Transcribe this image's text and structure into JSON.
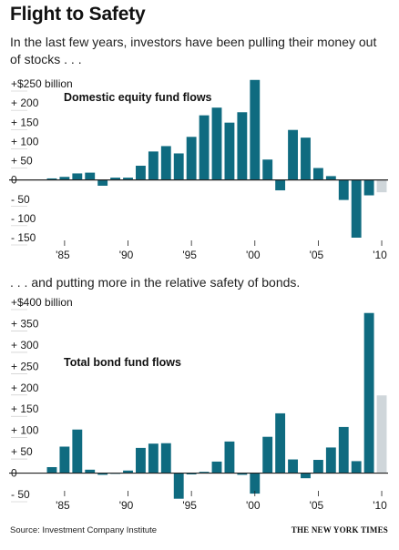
{
  "title": "Flight to Safety",
  "subtitle": "In the last few years, investors have been pulling their money out of stocks . . .",
  "subtitle2": ". . . and putting more in the relative safety of bonds.",
  "source": "Source: Investment Company Institute",
  "credit": "THE NEW YORK TIMES",
  "colors": {
    "bar": "#0f6b80",
    "estimate": "#cfd6da",
    "axis": "#222222",
    "text": "#1a1a1a"
  },
  "chart_data": [
    {
      "type": "bar",
      "title": "Domestic equity fund flows",
      "ylim": [
        -160,
        260
      ],
      "ytick_values": [
        250,
        200,
        150,
        100,
        50,
        0,
        -50,
        -100,
        -150
      ],
      "ytick_labels": [
        "+$250 billion",
        "+ 200",
        "+ 150",
        "+ 100",
        "+ 50",
        "0",
        "- 50",
        "- 100",
        "- 150"
      ],
      "xtick_years": [
        1985,
        1990,
        1995,
        2000,
        2005,
        2010
      ],
      "xtick_labels": [
        "'85",
        "'90",
        "'95",
        "'00",
        "'05",
        "'10"
      ],
      "x": [
        1984,
        1985,
        1986,
        1987,
        1988,
        1989,
        1990,
        1991,
        1992,
        1993,
        1994,
        1995,
        1996,
        1997,
        1998,
        1999,
        2000,
        2001,
        2002,
        2003,
        2004,
        2005,
        2006,
        2007,
        2008,
        2009,
        2010
      ],
      "values": [
        4,
        8,
        17,
        19,
        -15,
        6,
        6,
        37,
        74,
        88,
        69,
        112,
        168,
        188,
        149,
        176,
        260,
        53,
        -27,
        130,
        110,
        31,
        10,
        -52,
        -150,
        -40,
        -32
      ],
      "estimated": [
        false,
        false,
        false,
        false,
        false,
        false,
        false,
        false,
        false,
        false,
        false,
        false,
        false,
        false,
        false,
        false,
        false,
        false,
        false,
        false,
        false,
        false,
        false,
        false,
        false,
        false,
        true
      ]
    },
    {
      "type": "bar",
      "title": "Total bond fund flows",
      "ylim": [
        -60,
        400
      ],
      "ytick_values": [
        400,
        350,
        300,
        250,
        200,
        150,
        100,
        50,
        0,
        -50
      ],
      "ytick_labels": [
        "+$400 billion",
        "+ 350",
        "+ 300",
        "+ 250",
        "+ 200",
        "+ 150",
        "+ 100",
        "+ 50",
        "0",
        "- 50"
      ],
      "xtick_years": [
        1985,
        1990,
        1995,
        2000,
        2005,
        2010
      ],
      "xtick_labels": [
        "'85",
        "'90",
        "'95",
        "'00",
        "'05",
        "'10"
      ],
      "x": [
        1984,
        1985,
        1986,
        1987,
        1988,
        1989,
        1990,
        1991,
        1992,
        1993,
        1994,
        1995,
        1996,
        1997,
        1998,
        1999,
        2000,
        2001,
        2002,
        2003,
        2004,
        2005,
        2006,
        2007,
        2008,
        2009,
        2010
      ],
      "values": [
        14,
        62,
        102,
        8,
        -4,
        0,
        6,
        59,
        69,
        70,
        -60,
        -3,
        3,
        27,
        74,
        -4,
        -48,
        85,
        140,
        32,
        -12,
        31,
        60,
        108,
        28,
        375,
        182
      ],
      "estimated": [
        false,
        false,
        false,
        false,
        false,
        false,
        false,
        false,
        false,
        false,
        false,
        false,
        false,
        false,
        false,
        false,
        false,
        false,
        false,
        false,
        false,
        false,
        false,
        false,
        false,
        false,
        true
      ]
    }
  ]
}
